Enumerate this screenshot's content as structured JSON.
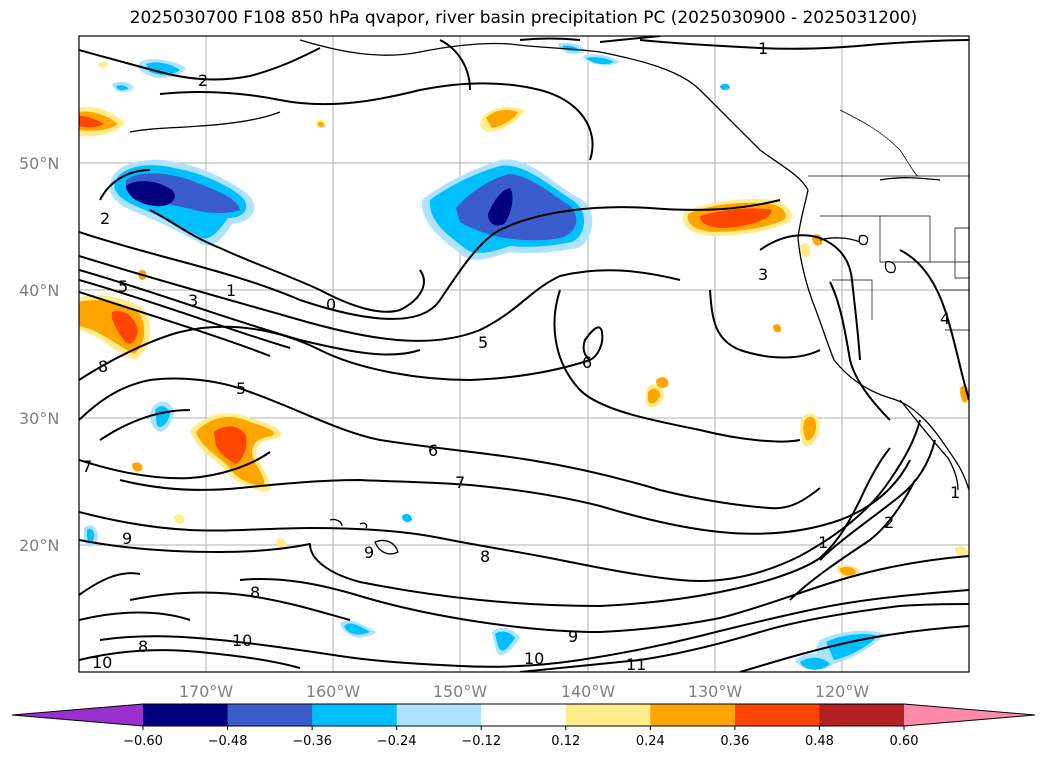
{
  "title": "2025030700 F108 850 hPa qvapor, river basin precipitation PC (2025030900 - 2025031200)",
  "lat_labels": [
    "50°N",
    "40°N",
    "30°N",
    "20°N"
  ],
  "lon_labels": [
    "170°W",
    "160°W",
    "150°W",
    "140°W",
    "130°W",
    "120°W"
  ],
  "contour_labels": [
    "2",
    "1",
    "2",
    "1",
    "0",
    "3",
    "5",
    "5",
    "8",
    "6",
    "5",
    "6",
    "7",
    "7",
    "9",
    "9",
    "8",
    "8",
    "8",
    "10",
    "10",
    "9",
    "10",
    "11",
    "3",
    "2",
    "1",
    "4",
    "1"
  ],
  "colorbar": {
    "colors": [
      "#9b30d0",
      "#000080",
      "#3a5ccc",
      "#00bfff",
      "#aee3ff",
      "#ffffff",
      "#ffec8b",
      "#ffa500",
      "#ff4500",
      "#b22222",
      "#ff89aa"
    ],
    "labels": [
      "−0.60",
      "−0.48",
      "−0.36",
      "−0.24",
      "−0.12",
      "0.12",
      "0.24",
      "0.36",
      "0.48",
      "0.60"
    ]
  }
}
